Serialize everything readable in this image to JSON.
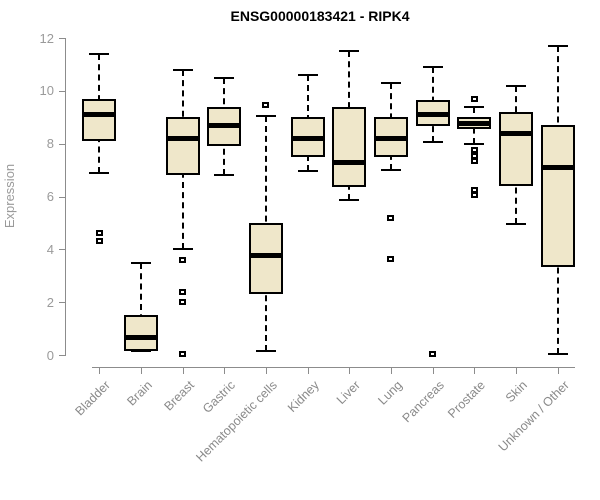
{
  "colors": {
    "background": "#ffffff",
    "box_fill": "#efe7ca",
    "box_stroke": "#000000",
    "axis": "#8c8c8c",
    "tick_text": "#9a9a9a",
    "category_text": "#8a8a8a",
    "title_text": "#000000"
  },
  "chart_data": {
    "type": "boxplot",
    "title": "ENSG00000183421 - RIPK4",
    "xlabel": "",
    "ylabel": "Expression",
    "ylim": [
      0,
      12
    ],
    "yticks": [
      0,
      2,
      4,
      6,
      8,
      10,
      12
    ],
    "grid": false,
    "legend": false,
    "categories": [
      "Bladder",
      "Brain",
      "Breast",
      "Gastric",
      "Hematopoietic cells",
      "Kidney",
      "Liver",
      "Lung",
      "Pancreas",
      "Prostate",
      "Skin",
      "Unknown / Other"
    ],
    "series": [
      {
        "name": "Bladder",
        "whisker_low": 6.9,
        "q1": 8.1,
        "median": 9.1,
        "q3": 9.7,
        "whisker_high": 11.4,
        "outliers": [
          4.6,
          4.3
        ]
      },
      {
        "name": "Brain",
        "whisker_low": 0.15,
        "q1": 0.15,
        "median": 0.65,
        "q3": 1.5,
        "whisker_high": 3.5,
        "outliers": []
      },
      {
        "name": "Breast",
        "whisker_low": 4.0,
        "q1": 6.8,
        "median": 8.2,
        "q3": 9.0,
        "whisker_high": 10.8,
        "outliers": [
          3.6,
          2.4,
          2.0,
          0.05
        ]
      },
      {
        "name": "Gastric",
        "whisker_low": 6.8,
        "q1": 7.9,
        "median": 8.7,
        "q3": 9.4,
        "whisker_high": 10.5,
        "outliers": []
      },
      {
        "name": "Hematopoietic cells",
        "whisker_low": 0.15,
        "q1": 2.3,
        "median": 3.75,
        "q3": 5.0,
        "whisker_high": 9.05,
        "outliers": [
          9.45
        ]
      },
      {
        "name": "Kidney",
        "whisker_low": 6.95,
        "q1": 7.5,
        "median": 8.2,
        "q3": 9.0,
        "whisker_high": 10.6,
        "outliers": []
      },
      {
        "name": "Liver",
        "whisker_low": 5.85,
        "q1": 6.35,
        "median": 7.3,
        "q3": 9.4,
        "whisker_high": 11.5,
        "outliers": []
      },
      {
        "name": "Lung",
        "whisker_low": 7.0,
        "q1": 7.5,
        "median": 8.2,
        "q3": 9.0,
        "whisker_high": 10.3,
        "outliers": [
          5.2,
          3.65
        ]
      },
      {
        "name": "Pancreas",
        "whisker_low": 8.05,
        "q1": 8.65,
        "median": 9.1,
        "q3": 9.65,
        "whisker_high": 10.9,
        "outliers": [
          0.05
        ]
      },
      {
        "name": "Prostate",
        "whisker_low": 8.0,
        "q1": 8.55,
        "median": 8.75,
        "q3": 9.0,
        "whisker_high": 9.4,
        "outliers": [
          9.7,
          7.75,
          7.55,
          7.35,
          6.25,
          6.05
        ]
      },
      {
        "name": "Skin",
        "whisker_low": 4.95,
        "q1": 6.4,
        "median": 8.4,
        "q3": 9.2,
        "whisker_high": 10.2,
        "outliers": []
      },
      {
        "name": "Unknown / Other",
        "whisker_low": 0.05,
        "q1": 3.35,
        "median": 7.1,
        "q3": 8.7,
        "whisker_high": 11.7,
        "outliers": []
      }
    ]
  }
}
